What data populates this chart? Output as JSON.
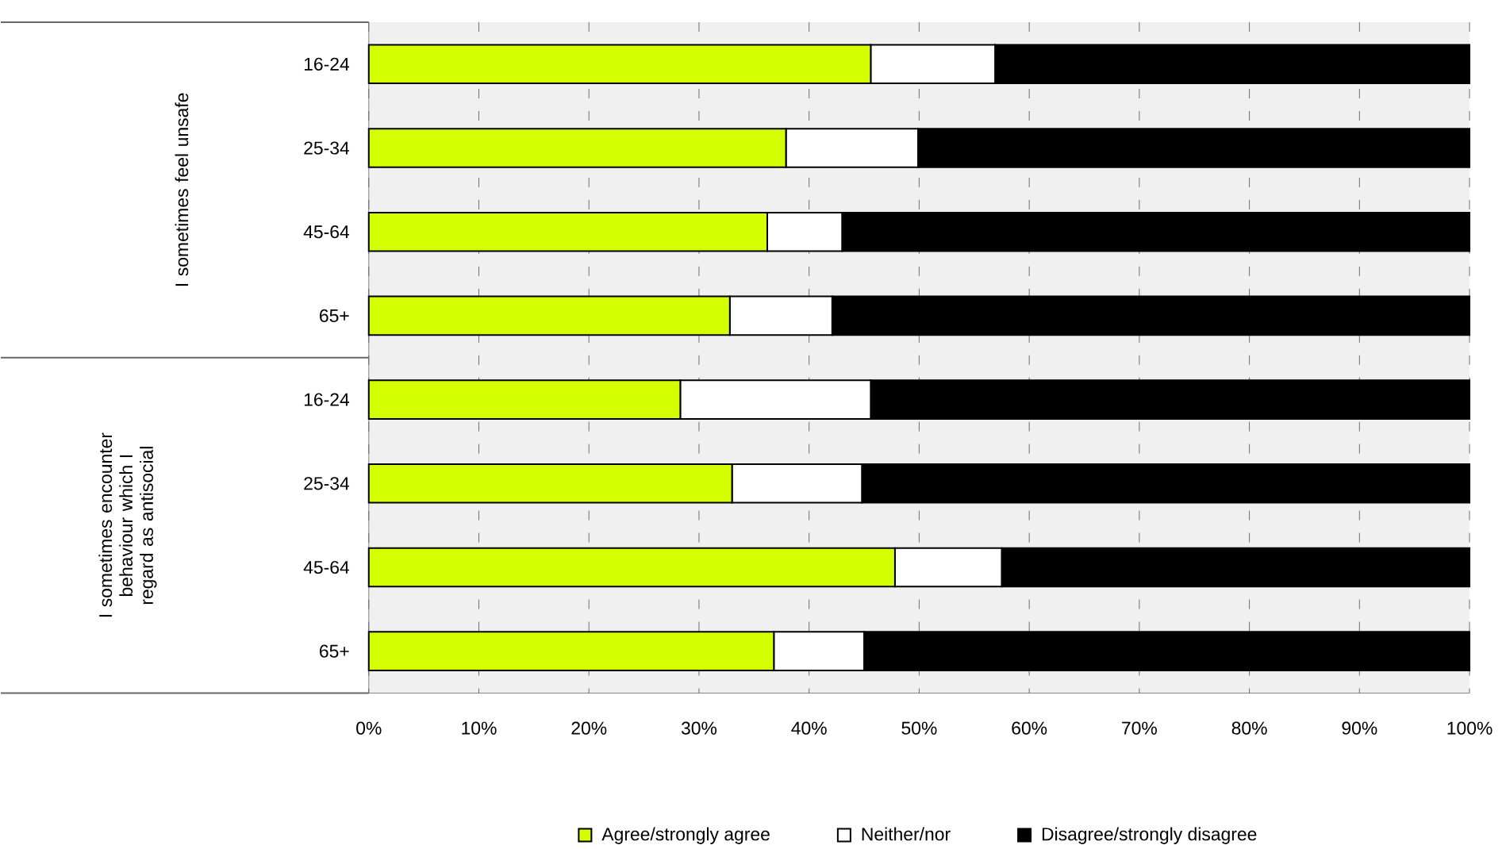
{
  "chart_data": {
    "type": "bar",
    "orientation": "horizontal",
    "stacked": true,
    "categories": [
      "16-24",
      "25-34",
      "45-64",
      "65+",
      "16-24",
      "25-34",
      "45-64",
      "65+"
    ],
    "series": [
      {
        "name": "Agree/strongly agree",
        "color": "#d4ff00",
        "values": [
          45.6,
          37.9,
          36.2,
          32.8,
          28.3,
          33.0,
          47.8,
          36.8
        ]
      },
      {
        "name": "Neither/nor",
        "color": "#ffffff",
        "values": [
          11.3,
          12.0,
          6.8,
          9.3,
          17.3,
          11.8,
          9.7,
          8.2
        ]
      },
      {
        "name": "Disagree/strongly disagree",
        "color": "#000000",
        "values": [
          43.1,
          50.1,
          57.0,
          57.9,
          54.4,
          55.2,
          42.5,
          55.0
        ]
      }
    ],
    "xlim": [
      0,
      100
    ],
    "xticks": [
      {
        "value": 0,
        "label": "0%"
      },
      {
        "value": 10,
        "label": "10%"
      },
      {
        "value": 20,
        "label": "20%"
      },
      {
        "value": 30,
        "label": "30%"
      },
      {
        "value": 40,
        "label": "40%"
      },
      {
        "value": 50,
        "label": "50%"
      },
      {
        "value": 60,
        "label": "60%"
      },
      {
        "value": 70,
        "label": "70%"
      },
      {
        "value": 80,
        "label": "80%"
      },
      {
        "value": 90,
        "label": "90%"
      },
      {
        "value": 100,
        "label": "100%"
      }
    ],
    "grid": "x",
    "legend": "bottom",
    "annotations": [
      "I sometimes feel unsafe",
      "I sometimes encounter behaviour which I regard as antisocial"
    ]
  }
}
